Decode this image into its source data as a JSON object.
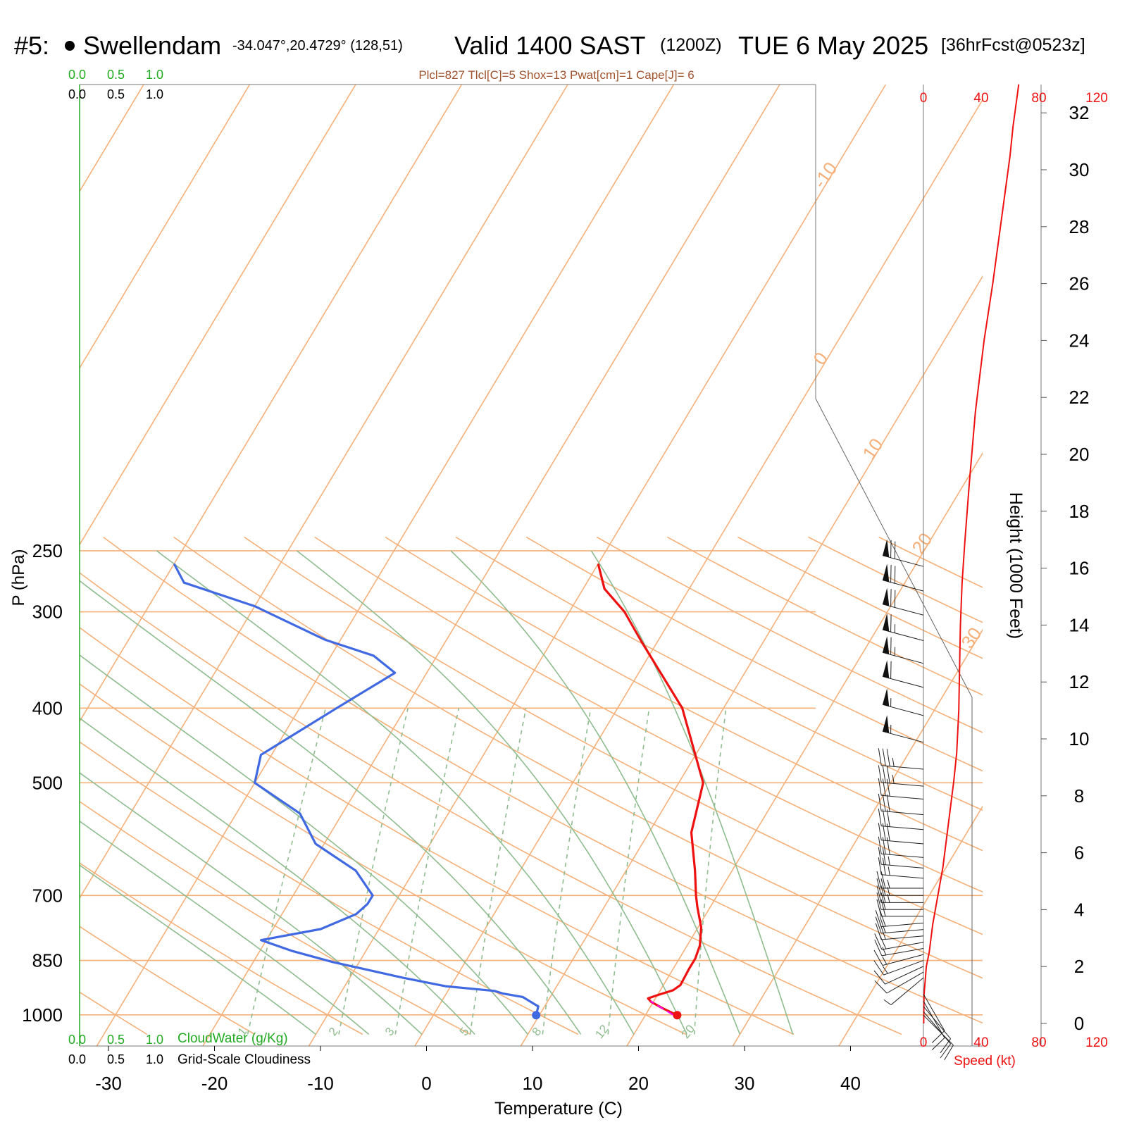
{
  "header": {
    "station_id": "#5:",
    "station_name": "Swellendam",
    "coords": "-34.047°,20.4729° (128,51)",
    "valid": "Valid 1400 SAST",
    "zulu": "(1200Z)",
    "date": "TUE 6 May 2025",
    "forecast": "[36hrFcst@0523z]"
  },
  "indices": "Plcl=827 Tlcl[C]=5 Shox=13 Pwat[cm]=1 Cape[J]= 6",
  "colors": {
    "temperature": "#ee1111",
    "dewpoint": "#4169e1",
    "isotherm_isobar": "#f5b07a",
    "dry_adiabat": "#f5b07a",
    "moist_adiabat": "#8fbc8f",
    "mixing_ratio": "#8fbc8f",
    "cloud_scale": "#22aa22",
    "wind_speed": "#ee1111",
    "parcel": "#ff00ff"
  },
  "cloud_scale_labels": [
    "0.0",
    "0.5",
    "1.0"
  ],
  "cloud_water_label": "CloudWater (g/Kg)",
  "cloudiness_label": "Grid-Scale Cloudiness",
  "speed_label": "Speed (kt)",
  "speed_ticks": [
    "0",
    "40",
    "80",
    "120"
  ],
  "chart_data": {
    "type": "line",
    "title": "",
    "xlabel": "Temperature (C)",
    "ylabel": "P (hPa)",
    "y2label": "Height (1000 Feet)",
    "y_scale": "log",
    "xlim": [
      -33,
      36
    ],
    "ylim": [
      1050,
      250
    ],
    "x_ticks": [
      -30,
      -20,
      -10,
      0,
      10,
      20,
      30,
      40
    ],
    "y_ticks": [
      250,
      300,
      400,
      500,
      700,
      850,
      1000
    ],
    "height_ticks_kft": [
      0,
      2,
      4,
      6,
      8,
      10,
      12,
      14,
      16,
      18,
      20,
      22,
      24,
      26,
      28,
      30,
      32
    ],
    "isotherm_labels": [
      -30,
      -20,
      -10,
      0,
      10,
      20,
      30
    ],
    "mixing_ratio_labels": [
      1,
      2,
      3,
      5,
      8,
      12,
      20
    ],
    "series": [
      {
        "name": "Temperature",
        "points": [
          [
            23.0,
            1001
          ],
          [
            21.2,
            980
          ],
          [
            19.8,
            962
          ],
          [
            19.3,
            952
          ],
          [
            20.0,
            943
          ],
          [
            21.2,
            929
          ],
          [
            21.6,
            915
          ],
          [
            21.5,
            872
          ],
          [
            21.5,
            845
          ],
          [
            21.2,
            813
          ],
          [
            20.3,
            770
          ],
          [
            18.8,
            725
          ],
          [
            18.0,
            700
          ],
          [
            16.5,
            650
          ],
          [
            14.0,
            580
          ],
          [
            12.3,
            500
          ],
          [
            6.1,
            400
          ],
          [
            -1.5,
            328
          ],
          [
            -4.8,
            300
          ],
          [
            -8.0,
            280
          ],
          [
            -10.0,
            260
          ]
        ]
      },
      {
        "name": "Dewpoint",
        "points": [
          [
            9.7,
            1001
          ],
          [
            9.4,
            975
          ],
          [
            7.4,
            948
          ],
          [
            5.3,
            938
          ],
          [
            4.4,
            931
          ],
          [
            -0.5,
            918
          ],
          [
            -5.0,
            895
          ],
          [
            -12.5,
            854
          ],
          [
            -17.0,
            826
          ],
          [
            -20.5,
            800
          ],
          [
            -15.5,
            774
          ],
          [
            -13.0,
            740
          ],
          [
            -12.5,
            718
          ],
          [
            -12.5,
            700
          ],
          [
            -15.5,
            650
          ],
          [
            -20.8,
            600
          ],
          [
            -24.0,
            548
          ],
          [
            -30.0,
            500
          ],
          [
            -31.0,
            460
          ],
          [
            -26.5,
            400
          ],
          [
            -23.0,
            360
          ],
          [
            -26.0,
            342
          ],
          [
            -31.5,
            326
          ],
          [
            -40.0,
            295
          ],
          [
            -48.0,
            275
          ],
          [
            -50.0,
            260
          ]
        ]
      },
      {
        "name": "Parcel",
        "points": [
          [
            22.6,
            1000
          ],
          [
            19.7,
            960
          ]
        ]
      }
    ],
    "surface_temperature": 23.0,
    "surface_dewpoint": 9.7,
    "wind_speed_profile_kt": [
      [
        0.2,
        0
      ],
      [
        0.4,
        1
      ],
      [
        1.2,
        1.5
      ],
      [
        2.0,
        2.0
      ],
      [
        4.0,
        2.5
      ],
      [
        6.5,
        3.5
      ],
      [
        10.0,
        4.5
      ],
      [
        13.5,
        5.5
      ],
      [
        16.0,
        6.5
      ],
      [
        18.5,
        7.5
      ],
      [
        21.0,
        8.5
      ],
      [
        23.0,
        9.5
      ],
      [
        24.5,
        11.0
      ],
      [
        25.0,
        12.5
      ],
      [
        25.6,
        14.0
      ],
      [
        26.8,
        15.5
      ],
      [
        28.8,
        17.0
      ],
      [
        31.8,
        19.0
      ],
      [
        36.0,
        21.5
      ],
      [
        42.0,
        24.0
      ],
      [
        48.0,
        26.0
      ],
      [
        56.0,
        29.0
      ],
      [
        60.0,
        30.5
      ],
      [
        62.0,
        31.5
      ],
      [
        66.0,
        33.0
      ]
    ],
    "wind_barbs": [
      {
        "p": 262,
        "dir": 285,
        "spd": 70
      },
      {
        "p": 282,
        "dir": 285,
        "spd": 70
      },
      {
        "p": 303,
        "dir": 285,
        "spd": 70
      },
      {
        "p": 327,
        "dir": 285,
        "spd": 65
      },
      {
        "p": 350,
        "dir": 285,
        "spd": 65
      },
      {
        "p": 376,
        "dir": 285,
        "spd": 60
      },
      {
        "p": 409,
        "dir": 285,
        "spd": 55
      },
      {
        "p": 443,
        "dir": 285,
        "spd": 55
      },
      {
        "p": 480,
        "dir": 275,
        "spd": 35
      },
      {
        "p": 505,
        "dir": 275,
        "spd": 35
      },
      {
        "p": 525,
        "dir": 275,
        "spd": 30
      },
      {
        "p": 550,
        "dir": 275,
        "spd": 30
      },
      {
        "p": 575,
        "dir": 275,
        "spd": 30
      },
      {
        "p": 600,
        "dir": 275,
        "spd": 30
      },
      {
        "p": 625,
        "dir": 275,
        "spd": 30
      },
      {
        "p": 645,
        "dir": 275,
        "spd": 25
      },
      {
        "p": 665,
        "dir": 275,
        "spd": 25
      },
      {
        "p": 685,
        "dir": 270,
        "spd": 25
      },
      {
        "p": 700,
        "dir": 270,
        "spd": 25
      },
      {
        "p": 715,
        "dir": 270,
        "spd": 25
      },
      {
        "p": 730,
        "dir": 270,
        "spd": 20
      },
      {
        "p": 745,
        "dir": 270,
        "spd": 20
      },
      {
        "p": 760,
        "dir": 265,
        "spd": 20
      },
      {
        "p": 775,
        "dir": 265,
        "spd": 20
      },
      {
        "p": 790,
        "dir": 265,
        "spd": 20
      },
      {
        "p": 805,
        "dir": 260,
        "spd": 20
      },
      {
        "p": 820,
        "dir": 260,
        "spd": 15
      },
      {
        "p": 835,
        "dir": 255,
        "spd": 15
      },
      {
        "p": 850,
        "dir": 250,
        "spd": 15
      },
      {
        "p": 865,
        "dir": 245,
        "spd": 10
      },
      {
        "p": 880,
        "dir": 240,
        "spd": 10
      },
      {
        "p": 895,
        "dir": 230,
        "spd": 5
      },
      {
        "p": 940,
        "dir": 150,
        "spd": 10
      },
      {
        "p": 960,
        "dir": 150,
        "spd": 10
      },
      {
        "p": 975,
        "dir": 140,
        "spd": 10
      },
      {
        "p": 990,
        "dir": 140,
        "spd": 10
      },
      {
        "p": 1001,
        "dir": 135,
        "spd": 10
      }
    ]
  }
}
